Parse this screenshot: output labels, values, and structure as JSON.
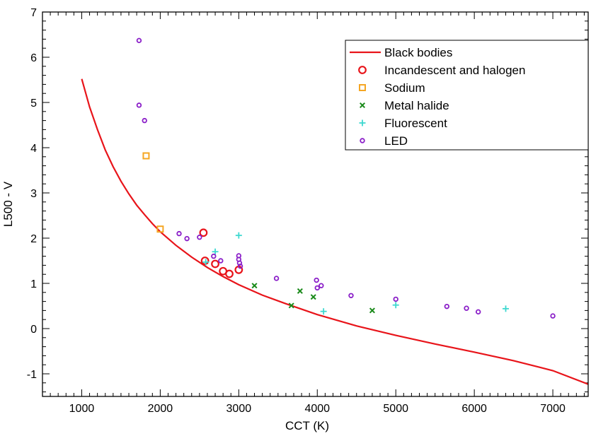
{
  "chart_data": {
    "type": "scatter",
    "title": "",
    "xlabel": "CCT (K)",
    "ylabel": "L500 - V",
    "xlim": [
      500,
      7450
    ],
    "ylim": [
      -1.5,
      7
    ],
    "x_ticks": [
      1000,
      2000,
      3000,
      4000,
      5000,
      6000,
      7000
    ],
    "y_ticks": [
      -1,
      0,
      1,
      2,
      3,
      4,
      5,
      6,
      7
    ],
    "x_tick_labels": [
      "1000",
      "2000",
      "3000",
      "4000",
      "5000",
      "6000",
      "7000"
    ],
    "y_tick_labels": [
      "-1",
      "0",
      "1",
      "2",
      "3",
      "4",
      "5",
      "6",
      "7"
    ],
    "grid": false,
    "legend_position": "top-right",
    "series": [
      {
        "name": "Black bodies",
        "kind": "line",
        "color": "#e8141a",
        "x": [
          1000,
          1100,
          1200,
          1300,
          1400,
          1500,
          1600,
          1700,
          1800,
          1900,
          2000,
          2200,
          2400,
          2600,
          2800,
          3000,
          3300,
          3600,
          4000,
          4500,
          5000,
          5500,
          6000,
          6500,
          7000,
          7450
        ],
        "y": [
          5.52,
          4.9,
          4.4,
          3.95,
          3.58,
          3.26,
          2.98,
          2.73,
          2.52,
          2.32,
          2.14,
          1.84,
          1.58,
          1.35,
          1.15,
          0.97,
          0.74,
          0.55,
          0.31,
          0.06,
          -0.15,
          -0.34,
          -0.52,
          -0.71,
          -0.93,
          -1.23
        ]
      },
      {
        "name": "Incandescent and halogen",
        "kind": "circle-large",
        "color": "#e8141a",
        "x": [
          2550,
          2570,
          2700,
          2800,
          2880,
          3000
        ],
        "y": [
          2.12,
          1.5,
          1.43,
          1.27,
          1.21,
          1.3
        ]
      },
      {
        "name": "Sodium",
        "kind": "square",
        "color": "#f5a623",
        "x": [
          1820,
          2000
        ],
        "y": [
          3.82,
          2.2
        ]
      },
      {
        "name": "Metal halide",
        "kind": "x",
        "color": "#1a8a1a",
        "x": [
          3200,
          3670,
          3780,
          3950,
          4700
        ],
        "y": [
          0.95,
          0.51,
          0.83,
          0.7,
          0.4
        ]
      },
      {
        "name": "Fluorescent",
        "kind": "plus",
        "color": "#3ed8d0",
        "x": [
          2580,
          2700,
          3000,
          4080,
          5000,
          6400
        ],
        "y": [
          1.47,
          1.7,
          2.06,
          0.38,
          0.52,
          0.44
        ]
      },
      {
        "name": "LED",
        "kind": "circle-small",
        "color": "#8a1ec8",
        "x": [
          1730,
          1730,
          1800,
          2240,
          2340,
          2500,
          2680,
          2770,
          3000,
          3000,
          3010,
          3020,
          3480,
          3990,
          4000,
          4050,
          4430,
          5000,
          5650,
          5900,
          6050,
          7000
        ],
        "y": [
          6.37,
          4.94,
          4.6,
          2.1,
          1.99,
          2.02,
          1.6,
          1.5,
          1.61,
          1.53,
          1.45,
          1.38,
          1.11,
          1.07,
          0.9,
          0.95,
          0.73,
          0.65,
          0.49,
          0.45,
          0.37,
          0.28
        ]
      }
    ]
  }
}
